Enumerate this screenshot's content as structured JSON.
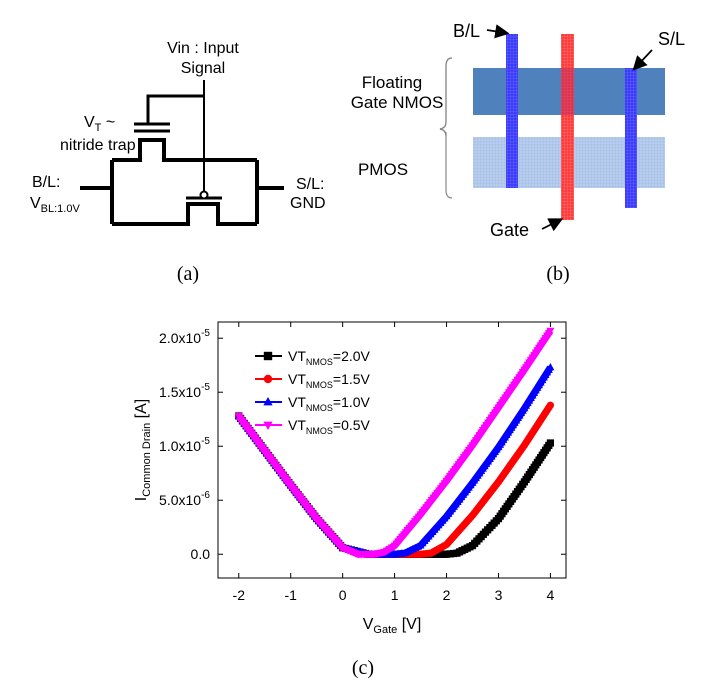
{
  "panel_a": {
    "vin_label": "Vin : Input",
    "signal_label": "Signal",
    "vt_label": "V",
    "vt_sub": "T",
    "vt_tilde": " ~",
    "nitride_label": "nitride trap",
    "bl_label": "B/L:",
    "vbl_label": "V",
    "vbl_sub": "BL:1.0V",
    "sl_label": "S/L:",
    "gnd_label": "GND",
    "caption": "(a)"
  },
  "panel_b": {
    "bl_label": "B/L",
    "sl_label": "S/L",
    "floating_label_1": "Floating",
    "floating_label_2": "Gate NMOS",
    "pmos_label": "PMOS",
    "gate_label": "Gate",
    "caption": "(b)",
    "colors": {
      "nmos": "#4f81bd",
      "pmos": "#a9c2e8",
      "bitline": "#1a1aff",
      "gate": "#ff3030"
    }
  },
  "panel_c": {
    "caption": "(c)",
    "ylabel_main": "I",
    "ylabel_sub": "Common Drain",
    "ylabel_unit": " [A]",
    "xlabel_main": "V",
    "xlabel_sub": "Gate",
    "xlabel_unit": " [V]",
    "ytick_labels": [
      {
        "mant": "0.0",
        "exp": ""
      },
      {
        "mant": "5.0x10",
        "exp": "-6"
      },
      {
        "mant": "1.0x10",
        "exp": "-5"
      },
      {
        "mant": "1.5x10",
        "exp": "-5"
      },
      {
        "mant": "2.0x10",
        "exp": "-5"
      }
    ],
    "xtick_labels": [
      "-2",
      "-1",
      "0",
      "1",
      "2",
      "3",
      "4"
    ]
  },
  "chart_data": {
    "type": "scatter",
    "xlabel": "V_Gate [V]",
    "ylabel": "I_Common Drain [A]",
    "xlim": [
      -2.4,
      4.3
    ],
    "ylim": [
      -2.2e-06,
      2.15e-05
    ],
    "yticks": [
      0,
      5e-06,
      1e-05,
      1.5e-05,
      2e-05
    ],
    "xticks": [
      -2,
      -1,
      0,
      1,
      2,
      3,
      4
    ],
    "legend_position": "top-left",
    "series": [
      {
        "name": "VT",
        "sub": "NMOS",
        "suffix": "=2.0V",
        "color": "#000000",
        "marker": "square",
        "x": [
          -2,
          -1.5,
          -1,
          -0.5,
          0,
          0.5,
          1,
          1.5,
          2,
          2.2,
          2.5,
          3,
          3.5,
          4
        ],
        "y": [
          1.28e-05,
          9.6e-06,
          6.4e-06,
          3.3e-06,
          6e-07,
          0,
          0,
          0,
          0,
          1e-07,
          8e-07,
          3.3e-06,
          6.7e-06,
          1.03e-05
        ]
      },
      {
        "name": "VT",
        "sub": "NMOS",
        "suffix": "=1.5V",
        "color": "#ff0000",
        "marker": "circle",
        "x": [
          -2,
          -1.5,
          -1,
          -0.5,
          0,
          0.5,
          1,
          1.5,
          1.7,
          2,
          2.5,
          3,
          3.5,
          4
        ],
        "y": [
          1.28e-05,
          9.6e-06,
          6.4e-06,
          3.3e-06,
          6e-07,
          0,
          0,
          0,
          1e-07,
          9e-07,
          3.6e-06,
          6.7e-06,
          1.01e-05,
          1.38e-05
        ]
      },
      {
        "name": "VT",
        "sub": "NMOS",
        "suffix": "=1.0V",
        "color": "#0000ff",
        "marker": "triangle-up",
        "x": [
          -2,
          -1.5,
          -1,
          -0.5,
          0,
          0.5,
          1,
          1.2,
          1.5,
          2,
          2.5,
          3,
          3.5,
          4
        ],
        "y": [
          1.28e-05,
          9.6e-06,
          6.4e-06,
          3.3e-06,
          6e-07,
          0,
          0,
          1e-07,
          8e-07,
          3.5e-06,
          6.6e-06,
          9.9e-06,
          1.35e-05,
          1.73e-05
        ]
      },
      {
        "name": "VT",
        "sub": "NMOS",
        "suffix": "=0.5V",
        "color": "#ff00ff",
        "marker": "triangle-down",
        "x": [
          -2,
          -1.5,
          -1,
          -0.5,
          0,
          0.3,
          0.6,
          0.8,
          1,
          1.5,
          2,
          2.5,
          3,
          3.5,
          4
        ],
        "y": [
          1.28e-05,
          9.6e-06,
          6.4e-06,
          3.3e-06,
          6e-07,
          0,
          0,
          2e-07,
          8e-07,
          3.7e-06,
          6.8e-06,
          1.01e-05,
          1.36e-05,
          1.71e-05,
          2.07e-05
        ]
      }
    ]
  }
}
